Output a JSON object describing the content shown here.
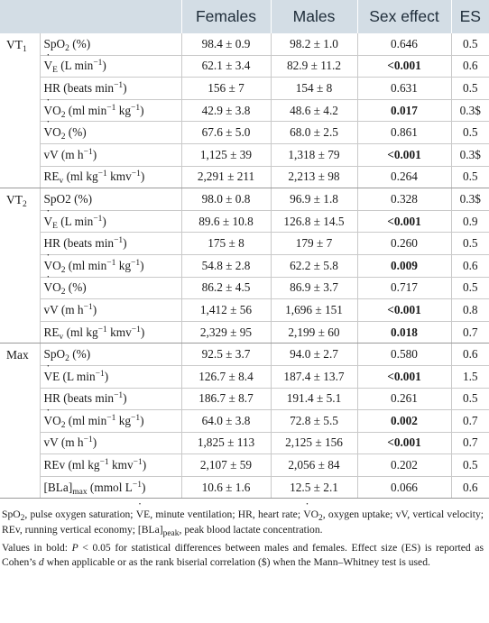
{
  "header": [
    "",
    "",
    "Females",
    "Males",
    "Sex effect",
    "ES"
  ],
  "groups": [
    {
      "label": "VT",
      "sub": "1",
      "rows": [
        {
          "p": [
            [
              "t",
              "SpO"
            ],
            [
              "sub",
              "2"
            ],
            [
              "t",
              " (%)"
            ]
          ],
          "f": "98.4 ± 0.9",
          "m": "98.2 ± 1.0",
          "s": "0.646",
          "bold": false,
          "es": "0.5"
        },
        {
          "p": [
            [
              "dot",
              "V"
            ],
            [
              "sub",
              "E"
            ],
            [
              "t",
              " (L min"
            ],
            [
              "sup",
              "−1"
            ],
            [
              "t",
              ")"
            ]
          ],
          "f": "62.1 ± 3.4",
          "m": "82.9 ± 11.2",
          "s": "<0.001",
          "bold": true,
          "es": "0.6"
        },
        {
          "p": [
            [
              "t",
              "HR (beats min"
            ],
            [
              "sup",
              "−1"
            ],
            [
              "t",
              ")"
            ]
          ],
          "f": "156 ± 7",
          "m": "154 ± 8",
          "s": "0.631",
          "bold": false,
          "es": "0.5"
        },
        {
          "p": [
            [
              "dot",
              "V"
            ],
            [
              "t",
              "O"
            ],
            [
              "sub",
              "2"
            ],
            [
              "t",
              " (ml min"
            ],
            [
              "sup",
              "−1"
            ],
            [
              "t",
              " kg"
            ],
            [
              "sup",
              "−1"
            ],
            [
              "t",
              ")"
            ]
          ],
          "f": "42.9 ± 3.8",
          "m": "48.6 ± 4.2",
          "s": "0.017",
          "bold": true,
          "es": "0.3$"
        },
        {
          "p": [
            [
              "dot",
              "V"
            ],
            [
              "t",
              "O"
            ],
            [
              "sub",
              "2"
            ],
            [
              "t",
              " (%)"
            ]
          ],
          "f": "67.6 ± 5.0",
          "m": "68.0 ± 2.5",
          "s": "0.861",
          "bold": false,
          "es": "0.5"
        },
        {
          "p": [
            [
              "t",
              "vV (m h"
            ],
            [
              "sup",
              "−1"
            ],
            [
              "t",
              ")"
            ]
          ],
          "f": "1,125 ± 39",
          "m": "1,318 ± 79",
          "s": "<0.001",
          "bold": true,
          "es": "0.3$"
        },
        {
          "p": [
            [
              "t",
              "RE"
            ],
            [
              "sub",
              "v"
            ],
            [
              "t",
              " (ml kg"
            ],
            [
              "sup",
              "−1"
            ],
            [
              "t",
              " kmv"
            ],
            [
              "sup",
              "−1"
            ],
            [
              "t",
              ")"
            ]
          ],
          "f": "2,291 ± 211",
          "m": "2,213 ± 98",
          "s": "0.264",
          "bold": false,
          "es": "0.5"
        }
      ]
    },
    {
      "label": "VT",
      "sub": "2",
      "rows": [
        {
          "p": [
            [
              "t",
              "SpO2 (%)"
            ]
          ],
          "f": "98.0 ± 0.8",
          "m": "96.9 ± 1.8",
          "s": "0.328",
          "bold": false,
          "es": "0.3$"
        },
        {
          "p": [
            [
              "dot",
              "V"
            ],
            [
              "sub",
              "E"
            ],
            [
              "t",
              " (L min"
            ],
            [
              "sup",
              "−1"
            ],
            [
              "t",
              ")"
            ]
          ],
          "f": "89.6 ± 10.8",
          "m": "126.8 ± 14.5",
          "s": "<0.001",
          "bold": true,
          "es": "0.9"
        },
        {
          "p": [
            [
              "t",
              "HR (beats min"
            ],
            [
              "sup",
              "−1"
            ],
            [
              "t",
              ")"
            ]
          ],
          "f": "175 ± 8",
          "m": "179 ± 7",
          "s": "0.260",
          "bold": false,
          "es": "0.5"
        },
        {
          "p": [
            [
              "dot",
              "V"
            ],
            [
              "t",
              "O"
            ],
            [
              "sub",
              "2"
            ],
            [
              "t",
              " (ml min"
            ],
            [
              "sup",
              "−1"
            ],
            [
              "t",
              " kg"
            ],
            [
              "sup",
              "−1"
            ],
            [
              "t",
              ")"
            ]
          ],
          "f": "54.8 ± 2.8",
          "m": "62.2 ± 5.8",
          "s": "0.009",
          "bold": true,
          "es": "0.6"
        },
        {
          "p": [
            [
              "dot",
              "V"
            ],
            [
              "t",
              "O"
            ],
            [
              "sub",
              "2"
            ],
            [
              "t",
              " (%)"
            ]
          ],
          "f": "86.2 ± 4.5",
          "m": "86.9 ± 3.7",
          "s": "0.717",
          "bold": false,
          "es": "0.5"
        },
        {
          "p": [
            [
              "t",
              "vV (m h"
            ],
            [
              "sup",
              "−1"
            ],
            [
              "t",
              ")"
            ]
          ],
          "f": "1,412 ± 56",
          "m": "1,696 ± 151",
          "s": "<0.001",
          "bold": true,
          "es": "0.8"
        },
        {
          "p": [
            [
              "t",
              "RE"
            ],
            [
              "sub",
              "v"
            ],
            [
              "t",
              " (ml kg"
            ],
            [
              "sup",
              "−1"
            ],
            [
              "t",
              " kmv"
            ],
            [
              "sup",
              "−1"
            ],
            [
              "t",
              ")"
            ]
          ],
          "f": "2,329 ± 95",
          "m": "2,199 ± 60",
          "s": "0.018",
          "bold": true,
          "es": "0.7"
        }
      ]
    },
    {
      "label": "Max",
      "sub": "",
      "rows": [
        {
          "p": [
            [
              "t",
              "SpO"
            ],
            [
              "sub",
              "2"
            ],
            [
              "t",
              " (%)"
            ]
          ],
          "f": "92.5 ± 3.7",
          "m": "94.0 ± 2.7",
          "s": "0.580",
          "bold": false,
          "es": "0.6"
        },
        {
          "p": [
            [
              "dot",
              "V"
            ],
            [
              "t",
              "E (L min"
            ],
            [
              "sup",
              "−1"
            ],
            [
              "t",
              ")"
            ]
          ],
          "f": "126.7 ± 8.4",
          "m": "187.4 ± 13.7",
          "s": "<0.001",
          "bold": true,
          "es": "1.5"
        },
        {
          "p": [
            [
              "t",
              "HR (beats min"
            ],
            [
              "sup",
              "−1"
            ],
            [
              "t",
              ")"
            ]
          ],
          "f": "186.7 ± 8.7",
          "m": "191.4 ± 5.1",
          "s": "0.261",
          "bold": false,
          "es": "0.5"
        },
        {
          "p": [
            [
              "dot",
              "V"
            ],
            [
              "t",
              "O"
            ],
            [
              "sub",
              "2"
            ],
            [
              "t",
              " (ml min"
            ],
            [
              "sup",
              "−1"
            ],
            [
              "t",
              " kg"
            ],
            [
              "sup",
              "−1"
            ],
            [
              "t",
              ")"
            ]
          ],
          "f": "64.0 ± 3.8",
          "m": "72.8 ± 5.5",
          "s": "0.002",
          "bold": true,
          "es": "0.7"
        },
        {
          "p": [
            [
              "t",
              "vV (m h"
            ],
            [
              "sup",
              "−1"
            ],
            [
              "t",
              ")"
            ]
          ],
          "f": "1,825 ± 113",
          "m": "2,125 ± 156",
          "s": "<0.001",
          "bold": true,
          "es": "0.7"
        },
        {
          "p": [
            [
              "t",
              "REv (ml kg"
            ],
            [
              "sup",
              "−1"
            ],
            [
              "t",
              " kmv"
            ],
            [
              "sup",
              "−1"
            ],
            [
              "t",
              ")"
            ]
          ],
          "f": "2,107 ± 59",
          "m": "2,056 ± 84",
          "s": "0.202",
          "bold": false,
          "es": "0.5"
        },
        {
          "p": [
            [
              "t",
              "[BLa]"
            ],
            [
              "sub",
              "max"
            ],
            [
              "t",
              " (mmol L"
            ],
            [
              "sup",
              "−1"
            ],
            [
              "t",
              ")"
            ]
          ],
          "f": "10.6 ± 1.6",
          "m": "12.5 ± 2.1",
          "s": "0.066",
          "bold": false,
          "es": "0.6"
        }
      ]
    }
  ],
  "notes": [
    [
      [
        "t",
        "SpO"
      ],
      [
        "sub",
        "2"
      ],
      [
        "t",
        ", pulse oxygen saturation; "
      ],
      [
        "dot",
        "V"
      ],
      [
        "t",
        "E, minute ventilation; HR, heart rate; "
      ],
      [
        "dot",
        "V"
      ],
      [
        "t",
        "O"
      ],
      [
        "sub",
        "2"
      ],
      [
        "t",
        ", oxygen uptake; vV, vertical velocity; REv, running vertical economy; [BLa]"
      ],
      [
        "sub",
        "peak"
      ],
      [
        "t",
        ", peak blood lactate concentration."
      ]
    ],
    [
      [
        "t",
        "Values in bold: "
      ],
      [
        "i",
        "P"
      ],
      [
        "t",
        " < 0.05 for statistical differences between males and females. Effect size (ES) is reported as Cohen’s "
      ],
      [
        "i",
        "d"
      ],
      [
        "t",
        " when applicable or as the rank biserial correlation ($) when the Mann–Whitney test is used."
      ]
    ]
  ]
}
